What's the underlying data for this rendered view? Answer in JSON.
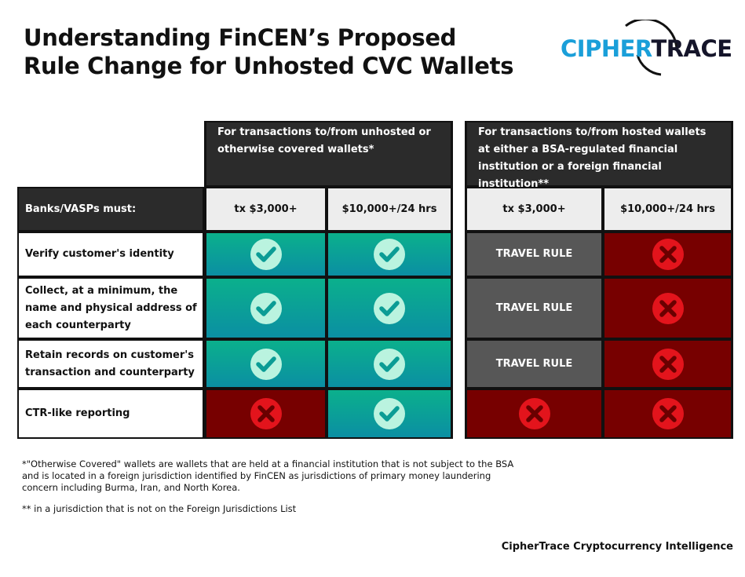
{
  "header": {
    "title_lines": [
      "Understanding FinCEN’s Proposed",
      "Rule Change for Unhosted CVC Wallets"
    ],
    "logo": {
      "part1": "CIPHER",
      "part2": "TRACE"
    }
  },
  "table": {
    "groups": [
      "For transactions to/from unhosted or otherwise covered wallets*",
      "For transactions to/from hosted wallets at either a BSA-regulated financial institution or a foreign financial institution**"
    ],
    "row_header": "Banks/VASPs must:",
    "columns": [
      "tx $3,000+",
      "$10,000+/24 hrs",
      "tx $3,000+",
      "$10,000+/24 hrs"
    ],
    "rows": [
      {
        "label": "Verify customer's identity",
        "cells": [
          null,
          null,
          "TRAVEL RULE",
          null
        ]
      },
      {
        "label": "Collect, at a minimum, the name and physical address of each counterparty",
        "cells": [
          null,
          null,
          "TRAVEL RULE",
          null
        ]
      },
      {
        "label": "Retain records on customer's transaction and counterparty",
        "cells": [
          null,
          null,
          "TRAVEL RULE",
          null
        ]
      },
      {
        "label": "CTR-like reporting",
        "cells": [
          null,
          null,
          null,
          null
        ]
      }
    ]
  },
  "footnotes": [
    "*\"Otherwise Covered\" wallets are wallets that are held at a financial institution that is not subject to the BSA and is located in a foreign jurisdiction identified by FinCEN as jurisdictions of primary money laundering concern including Burma, Iran, and North Korea.",
    "** in a jurisdiction that is not on the Foreign Jurisdictions List"
  ],
  "footer": "CipherTrace Cryptocurrency Intelligence"
}
